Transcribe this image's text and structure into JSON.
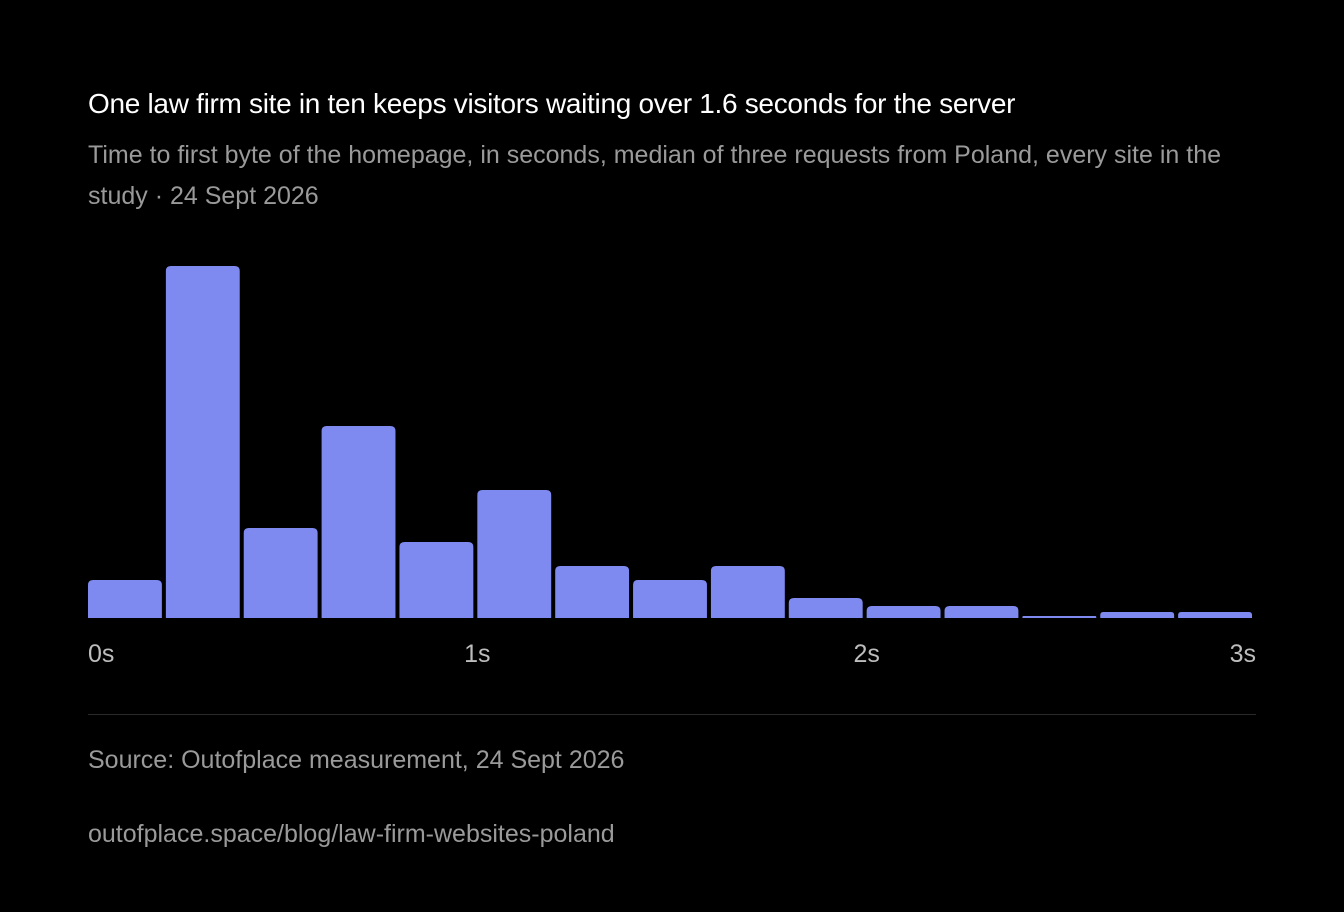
{
  "header": {
    "title": "One law firm site in ten keeps visitors waiting over 1.6 seconds for the server",
    "subtitle": "Time to first byte of the homepage, in seconds, median of three requests from Poland, every site in the study · 24 Sept 2026"
  },
  "footer": {
    "source": "Source: Outofplace measurement, 24 Sept 2026",
    "url": "outofplace.space/blog/law-firm-websites-poland"
  },
  "colors": {
    "background": "#000000",
    "bar": "#7f8af1",
    "title": "#ffffff",
    "muted": "#9a9a9a",
    "tick": "#bdbdbd"
  },
  "chart_data": {
    "type": "bar",
    "subtype": "histogram",
    "title": "One law firm site in ten keeps visitors waiting over 1.6 seconds for the server",
    "subtitle": "Time to first byte of the homepage, in seconds, median of three requests from Poland, every site in the study · 24 Sept 2026",
    "xlabel": "",
    "ylabel": "",
    "bin_width": 0.2,
    "bins": [
      {
        "x0": 0.0,
        "x1": 0.2,
        "value": 38
      },
      {
        "x0": 0.2,
        "x1": 0.4,
        "value": 352
      },
      {
        "x0": 0.4,
        "x1": 0.6,
        "value": 90
      },
      {
        "x0": 0.6,
        "x1": 0.8,
        "value": 192
      },
      {
        "x0": 0.8,
        "x1": 1.0,
        "value": 76
      },
      {
        "x0": 1.0,
        "x1": 1.2,
        "value": 128
      },
      {
        "x0": 1.2,
        "x1": 1.4,
        "value": 52
      },
      {
        "x0": 1.4,
        "x1": 1.6,
        "value": 38
      },
      {
        "x0": 1.6,
        "x1": 1.8,
        "value": 52
      },
      {
        "x0": 1.8,
        "x1": 2.0,
        "value": 20
      },
      {
        "x0": 2.0,
        "x1": 2.2,
        "value": 12
      },
      {
        "x0": 2.2,
        "x1": 2.4,
        "value": 12
      },
      {
        "x0": 2.4,
        "x1": 2.6,
        "value": 2
      },
      {
        "x0": 2.6,
        "x1": 2.8,
        "value": 6
      },
      {
        "x0": 2.8,
        "x1": 3.0,
        "value": 6
      }
    ],
    "xlim": [
      0,
      3
    ],
    "ylim": [
      0,
      352
    ],
    "x_ticks": [
      {
        "value": 0,
        "label": "0s"
      },
      {
        "value": 1,
        "label": "1s"
      },
      {
        "value": 2,
        "label": "2s"
      },
      {
        "value": 3,
        "label": "3s"
      }
    ],
    "grid": false,
    "y_axis_visible": false
  }
}
